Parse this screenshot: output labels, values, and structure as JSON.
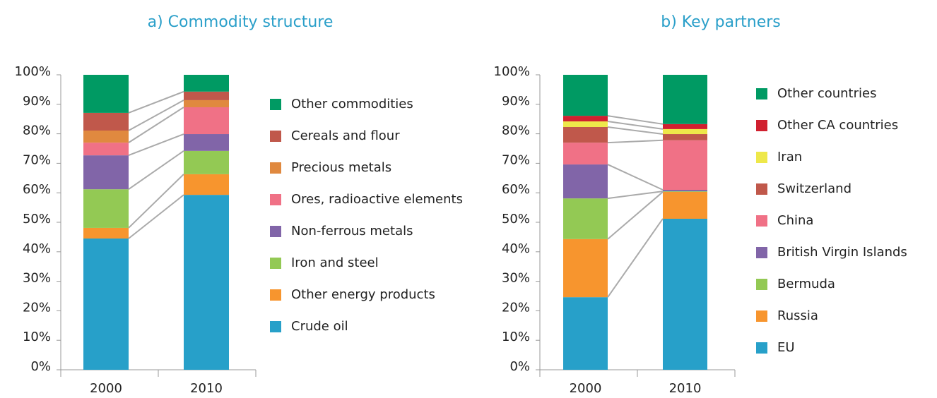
{
  "chart_data": [
    {
      "type": "bar",
      "stacked": true,
      "title": "a) Commodity structure",
      "categories": [
        "2000",
        "2010"
      ],
      "ylim": [
        0,
        100
      ],
      "yticks": [
        {
          "value": 0,
          "label": "0%"
        },
        {
          "value": 10,
          "label": "10%"
        },
        {
          "value": 20,
          "label": "20%"
        },
        {
          "value": 30,
          "label": "30%"
        },
        {
          "value": 40,
          "label": "40%"
        },
        {
          "value": 50,
          "label": "50%"
        },
        {
          "value": 60,
          "label": "60%"
        },
        {
          "value": 70,
          "label": "70%"
        },
        {
          "value": 80,
          "label": "80%"
        },
        {
          "value": 90,
          "label": "90%"
        },
        {
          "value": 100,
          "label": "100%"
        }
      ],
      "series": [
        {
          "name": "Crude oil",
          "color": "#27a0c9",
          "values": [
            44.5,
            59.3
          ]
        },
        {
          "name": "Other energy products",
          "color": "#f7952e",
          "values": [
            3.6,
            7.0
          ]
        },
        {
          "name": "Iron and steel",
          "color": "#93c954",
          "values": [
            13.1,
            7.9
          ]
        },
        {
          "name": "Non-ferrous metals",
          "color": "#8165a8",
          "values": [
            11.5,
            5.7
          ]
        },
        {
          "name": "Ores, radioactive elements",
          "color": "#f07186",
          "values": [
            4.3,
            9.1
          ]
        },
        {
          "name": "Precious metals",
          "color": "#e0893f",
          "values": [
            4.1,
            2.4
          ]
        },
        {
          "name": "Cereals and flour",
          "color": "#c0584b",
          "values": [
            6.0,
            2.9
          ]
        },
        {
          "name": "Other commodities",
          "color": "#009a63",
          "values": [
            12.9,
            5.7
          ]
        }
      ]
    },
    {
      "type": "bar",
      "stacked": true,
      "title": "b) Key partners",
      "categories": [
        "2000",
        "2010"
      ],
      "ylim": [
        0,
        100
      ],
      "yticks": [
        {
          "value": 0,
          "label": "0%"
        },
        {
          "value": 10,
          "label": "10%"
        },
        {
          "value": 20,
          "label": "20%"
        },
        {
          "value": 30,
          "label": "30%"
        },
        {
          "value": 40,
          "label": "40%"
        },
        {
          "value": 50,
          "label": "50%"
        },
        {
          "value": 60,
          "label": "60%"
        },
        {
          "value": 70,
          "label": "70%"
        },
        {
          "value": 80,
          "label": "80%"
        },
        {
          "value": 90,
          "label": "90%"
        },
        {
          "value": 100,
          "label": "100%"
        }
      ],
      "series": [
        {
          "name": "EU",
          "color": "#27a0c9",
          "values": [
            24.6,
            51.2
          ]
        },
        {
          "name": "Russia",
          "color": "#f7952e",
          "values": [
            19.7,
            9.1
          ]
        },
        {
          "name": "Bermuda",
          "color": "#93c954",
          "values": [
            13.8,
            0.2
          ]
        },
        {
          "name": "British Virgin Islands",
          "color": "#8165a8",
          "values": [
            11.5,
            0.5
          ]
        },
        {
          "name": "China",
          "color": "#f07186",
          "values": [
            7.4,
            16.8
          ]
        },
        {
          "name": "Switzerland",
          "color": "#c0584b",
          "values": [
            5.3,
            2.1
          ]
        },
        {
          "name": "Iran",
          "color": "#eee84a",
          "values": [
            1.9,
            1.7
          ]
        },
        {
          "name": "Other CA countries",
          "color": "#d0202f",
          "values": [
            1.9,
            1.7
          ]
        },
        {
          "name": "Other countries",
          "color": "#009a63",
          "values": [
            13.9,
            16.7
          ]
        }
      ]
    }
  ]
}
